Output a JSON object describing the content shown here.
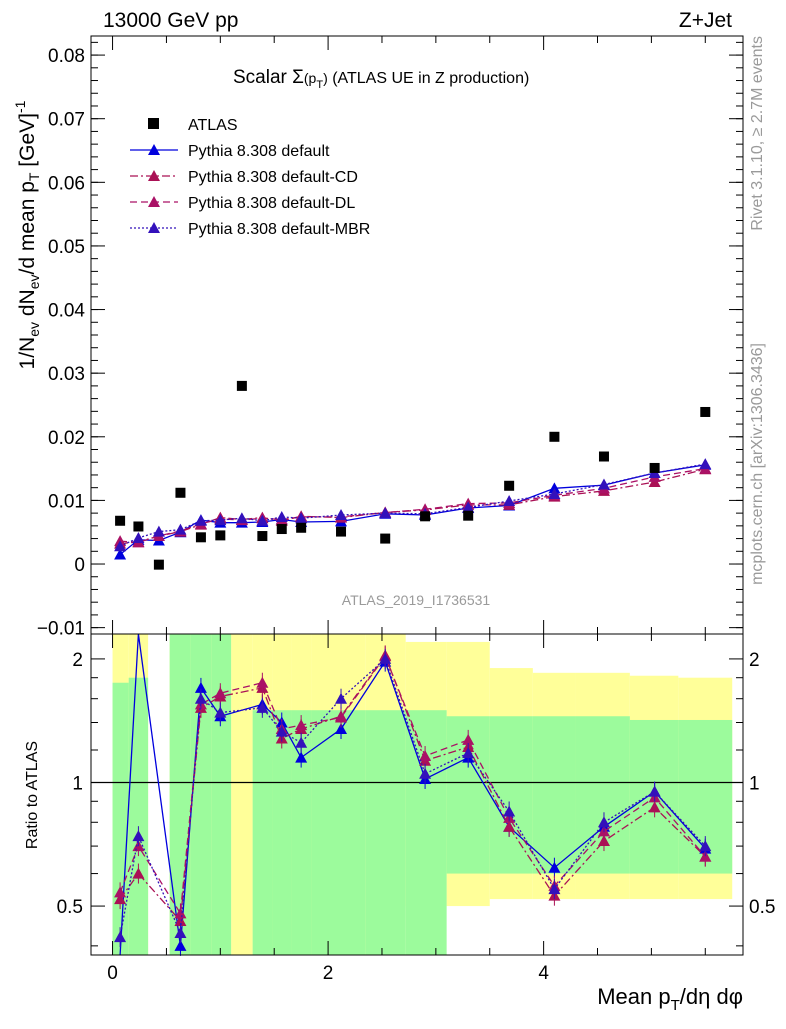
{
  "header": {
    "left": "13000 GeV pp",
    "right": "Z+Jet"
  },
  "side_labels": {
    "rivet": "Rivet 3.1.10, ≥ 2.7M events",
    "mcplots": "mcplots.cern.ch [arXiv:1306.3436]"
  },
  "colors": {
    "data": "#000000",
    "default": "#0000dd",
    "cd": "#aa1155",
    "dl": "#aa1166",
    "mbr": "#3311bb",
    "band_inner": "#9cfb9c",
    "band_outer": "#ffff99"
  },
  "chart_data": [
    {
      "type": "scatter",
      "title": "Scalar Σ(p_T) (ATLAS UE in Z production)",
      "watermark": "ATLAS_2019_I1736531",
      "ylabel": "1/N_ev dN_ev/d mean p_T [GeV]^-1",
      "xlim": [
        -0.2,
        5.85
      ],
      "ylim": [
        -0.011,
        0.083
      ],
      "yticks": [
        "−0.01",
        "0",
        "0.01",
        "0.02",
        "0.03",
        "0.04",
        "0.05",
        "0.06",
        "0.07",
        "0.08"
      ],
      "legend_position": "top-left",
      "x": [
        0.07,
        0.24,
        0.43,
        0.63,
        0.82,
        1.0,
        1.2,
        1.39,
        1.57,
        1.75,
        2.12,
        2.53,
        2.9,
        3.3,
        3.68,
        4.1,
        4.56,
        5.03,
        5.5
      ],
      "series": [
        {
          "name": "ATLAS",
          "style": "data",
          "values": [
            0.0068,
            0.0059,
            -0.0001,
            0.0112,
            0.0042,
            0.0045,
            0.028,
            0.0044,
            0.0055,
            0.0057,
            0.0051,
            0.004,
            0.0075,
            0.0076,
            0.0123,
            0.02,
            0.0169,
            0.0151,
            0.0239
          ]
        },
        {
          "name": "Pythia 8.308 default",
          "style": "solid",
          "values": [
            0.0015,
            0.0038,
            0.0037,
            0.005,
            0.0069,
            0.0065,
            0.0065,
            0.0066,
            0.007,
            0.0066,
            0.0067,
            0.0079,
            0.0077,
            0.0088,
            0.0092,
            0.0119,
            0.0124,
            0.0143,
            0.0156
          ]
        },
        {
          "name": "Pythia 8.308 default-CD",
          "style": "dashdot",
          "values": [
            0.0032,
            0.0035,
            0.0044,
            0.0051,
            0.0062,
            0.0073,
            0.007,
            0.0073,
            0.0068,
            0.0075,
            0.0073,
            0.0081,
            0.0085,
            0.0093,
            0.0093,
            0.0106,
            0.0115,
            0.0129,
            0.0149
          ]
        },
        {
          "name": "Pythia 8.308 default-DL",
          "style": "dashed",
          "values": [
            0.0036,
            0.0034,
            0.0044,
            0.0052,
            0.0063,
            0.0071,
            0.0069,
            0.0072,
            0.007,
            0.0074,
            0.0074,
            0.0081,
            0.0086,
            0.0095,
            0.0096,
            0.0108,
            0.0119,
            0.0137,
            0.015
          ]
        },
        {
          "name": "Pythia 8.308 default-MBR",
          "style": "dotted",
          "values": [
            0.0028,
            0.0041,
            0.0051,
            0.0054,
            0.0068,
            0.0069,
            0.0072,
            0.0068,
            0.0074,
            0.0072,
            0.0077,
            0.008,
            0.0079,
            0.0089,
            0.0099,
            0.011,
            0.0125,
            0.0143,
            0.0157
          ]
        }
      ]
    },
    {
      "type": "line",
      "ylabel": "Ratio to ATLAS",
      "xlabel": "Mean p_T/dη dφ",
      "xticks": [
        "0",
        "2",
        "4"
      ],
      "yticks": [
        "0.5",
        "1",
        "2"
      ],
      "ylim": [
        0.38,
        2.3
      ],
      "log_y": true,
      "bin_edges": [
        0.0,
        0.15,
        0.33,
        0.53,
        0.72,
        0.92,
        1.1,
        1.3,
        1.48,
        1.66,
        1.85,
        2.35,
        2.72,
        3.1,
        3.5,
        3.9,
        4.3,
        4.8,
        5.25,
        5.75
      ],
      "band_inner": {
        "lo": [
          0.38,
          0.38,
          null,
          0.38,
          0.38,
          0.38,
          null,
          0.38,
          0.38,
          0.38,
          0.38,
          0.38,
          0.38,
          0.6,
          0.6,
          0.6,
          0.6,
          0.6,
          0.6
        ],
        "hi": [
          1.75,
          1.8,
          null,
          2.3,
          2.3,
          2.3,
          null,
          1.5,
          1.5,
          1.5,
          1.5,
          1.5,
          1.5,
          1.45,
          1.45,
          1.45,
          1.45,
          1.42,
          1.42
        ]
      },
      "band_outer": {
        "lo": [
          0.38,
          0.38,
          null,
          0.38,
          0.38,
          0.38,
          0.38,
          0.38,
          0.38,
          0.38,
          0.38,
          0.38,
          0.5,
          0.5,
          0.52,
          0.52,
          0.52,
          0.52,
          0.52
        ],
        "hi": [
          2.3,
          2.3,
          null,
          2.3,
          2.3,
          2.3,
          2.3,
          2.3,
          2.3,
          2.3,
          2.3,
          2.3,
          2.2,
          2.2,
          1.9,
          1.85,
          1.85,
          1.82,
          1.8
        ]
      },
      "x": [
        0.07,
        0.24,
        0.63,
        0.82,
        1.0,
        1.39,
        1.57,
        1.75,
        2.12,
        2.53,
        2.9,
        3.3,
        3.68,
        4.1,
        4.56,
        5.03,
        5.5
      ],
      "series": [
        {
          "name": "Pythia 8.308 default",
          "style": "solid",
          "values": [
            0.38,
            2.3,
            0.4,
            1.7,
            1.45,
            1.55,
            1.4,
            1.15,
            1.35,
            1.97,
            1.02,
            1.15,
            0.78,
            0.62,
            0.78,
            0.95,
            0.69
          ]
        },
        {
          "name": "Pythia 8.308 default-CD",
          "style": "dashdot",
          "values": [
            0.52,
            0.6,
            0.46,
            1.52,
            1.62,
            1.7,
            1.28,
            1.35,
            1.45,
            2.04,
            1.13,
            1.22,
            0.78,
            0.53,
            0.72,
            0.87,
            0.66
          ]
        },
        {
          "name": "Pythia 8.308 default-DL",
          "style": "dashed",
          "values": [
            0.54,
            0.7,
            0.48,
            1.55,
            1.65,
            1.75,
            1.35,
            1.38,
            1.44,
            2.03,
            1.16,
            1.27,
            0.82,
            0.56,
            0.76,
            0.92,
            0.66
          ]
        },
        {
          "name": "Pythia 8.308 default-MBR",
          "style": "dotted",
          "values": [
            0.42,
            0.74,
            0.43,
            1.6,
            1.48,
            1.52,
            1.33,
            1.25,
            1.6,
            2.0,
            1.05,
            1.18,
            0.85,
            0.55,
            0.8,
            0.95,
            0.7
          ]
        }
      ]
    }
  ]
}
